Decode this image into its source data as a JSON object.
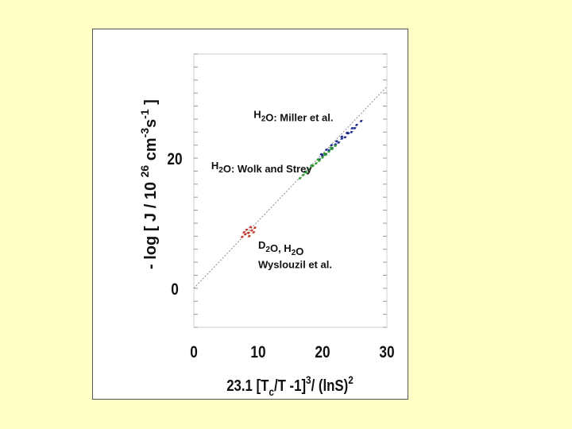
{
  "chart_data": {
    "type": "scatter",
    "xlabel": "23.1 [Tc/T -1]³/ (lnS)²",
    "ylabel": "- log [ J / 10²⁶ cm⁻³s⁻¹ ]",
    "xlim": [
      0,
      30
    ],
    "ylim": [
      -6,
      36
    ],
    "x_ticks": [
      "0",
      "10",
      "20",
      "30"
    ],
    "y_ticks": [
      "0",
      "20"
    ],
    "grid": false,
    "reference_line": {
      "x": [
        0,
        30
      ],
      "y": [
        0,
        31
      ]
    },
    "series": [
      {
        "name": "H2O: Miller et al.",
        "color": "#1c2a8c",
        "points": [
          [
            19.5,
            19.8
          ],
          [
            20.0,
            20.4
          ],
          [
            20.5,
            20.6
          ],
          [
            21.0,
            21.2
          ],
          [
            21.5,
            21.5
          ],
          [
            22.0,
            22.1
          ],
          [
            22.5,
            22.4
          ],
          [
            23.0,
            23.0
          ],
          [
            23.5,
            23.2
          ],
          [
            24.0,
            23.8
          ],
          [
            24.5,
            24.0
          ],
          [
            25.0,
            24.6
          ],
          [
            19.8,
            20.6
          ],
          [
            20.6,
            21.3
          ],
          [
            21.4,
            22.0
          ],
          [
            22.2,
            22.6
          ],
          [
            23.0,
            23.3
          ],
          [
            23.8,
            23.9
          ],
          [
            24.6,
            24.6
          ],
          [
            25.3,
            25.1
          ],
          [
            26.0,
            25.7
          ]
        ]
      },
      {
        "name": "H2O: Wolk and Strey",
        "color": "#2e9a2e",
        "points": [
          [
            16.5,
            16.9
          ],
          [
            17.0,
            17.4
          ],
          [
            17.5,
            17.8
          ],
          [
            18.0,
            18.3
          ],
          [
            18.5,
            18.8
          ],
          [
            19.0,
            19.2
          ],
          [
            19.5,
            19.6
          ],
          [
            20.0,
            20.1
          ],
          [
            20.5,
            20.5
          ],
          [
            21.0,
            21.0
          ],
          [
            21.5,
            21.4
          ],
          [
            22.0,
            21.9
          ],
          [
            17.3,
            17.9
          ],
          [
            18.3,
            18.9
          ],
          [
            19.3,
            19.8
          ],
          [
            20.3,
            20.7
          ],
          [
            21.3,
            21.6
          ]
        ]
      },
      {
        "name": "D2O, H2O Wyslouzil et al.",
        "color": "#c0392b",
        "points": [
          [
            7.5,
            7.9
          ],
          [
            8.0,
            8.3
          ],
          [
            8.5,
            8.5
          ],
          [
            9.0,
            8.9
          ],
          [
            9.5,
            9.3
          ],
          [
            8.2,
            9.0
          ],
          [
            8.8,
            9.4
          ],
          [
            9.3,
            8.6
          ],
          [
            7.8,
            8.6
          ],
          [
            8.6,
            8.0
          ]
        ]
      }
    ],
    "annotations": [
      {
        "label": "H2O: Miller et al.",
        "x": 9.3,
        "y": 26.2
      },
      {
        "label": "H2O: Wolk and Strey",
        "x": 2.7,
        "y": 18.3
      },
      {
        "label": "D2O, H2O",
        "x": 10.0,
        "y": 6.1
      },
      {
        "label": "Wyslouzil et al.",
        "x": 10.0,
        "y": 3.1
      }
    ]
  }
}
